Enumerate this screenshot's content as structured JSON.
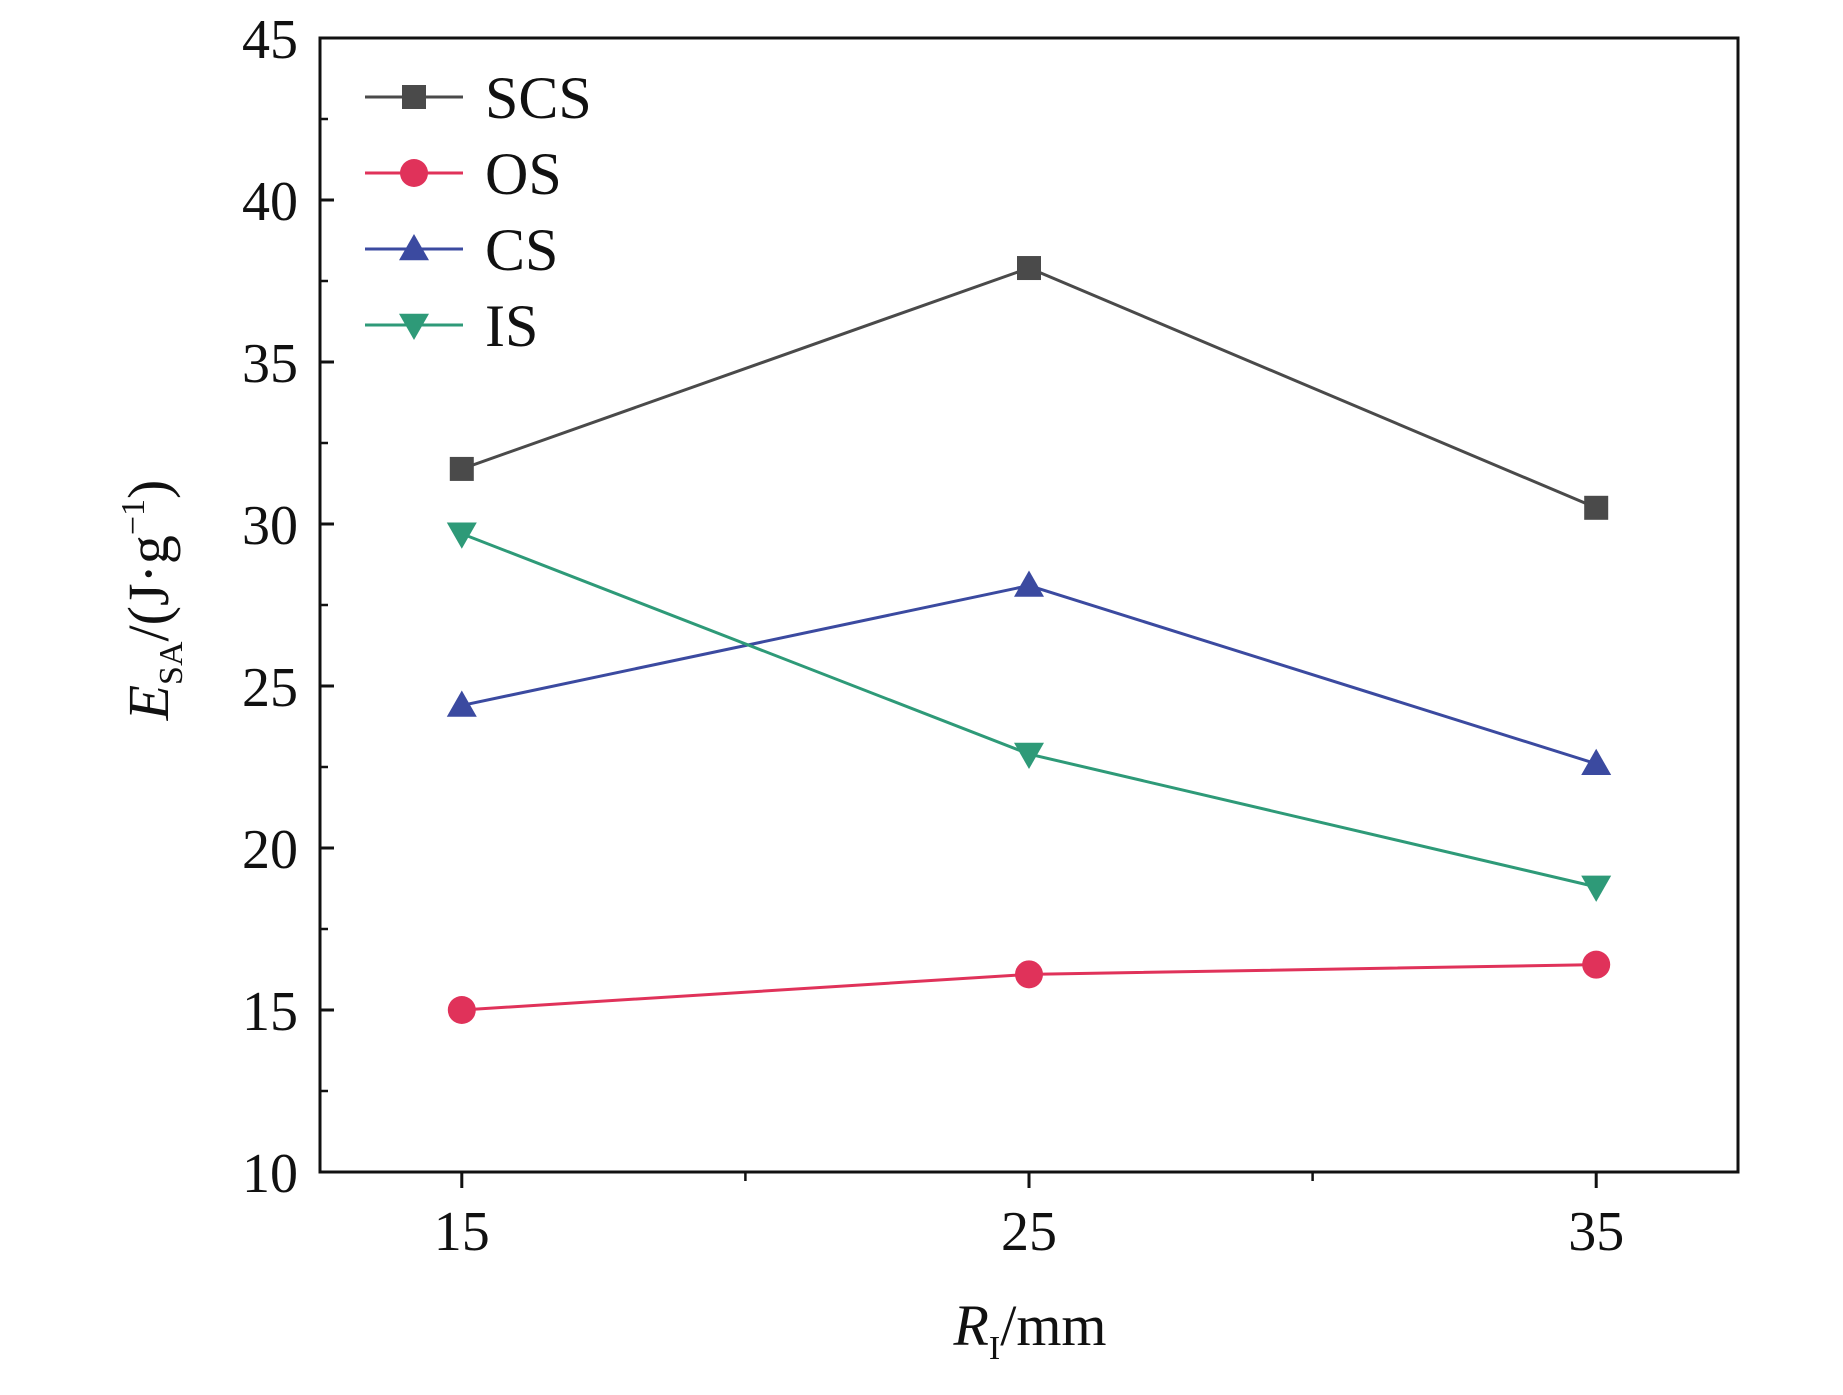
{
  "chart_data": {
    "type": "line",
    "title": "",
    "x": [
      15,
      25,
      35
    ],
    "xticks": [
      "15",
      "25",
      "35"
    ],
    "xlim": [
      12.5,
      37.5
    ],
    "yticks": [
      "10",
      "15",
      "20",
      "25",
      "30",
      "35",
      "40",
      "45"
    ],
    "ylim": [
      10,
      45
    ],
    "xlabel": {
      "main": "R",
      "sub": "I",
      "unit": "/mm"
    },
    "ylabel": {
      "main": "E",
      "sub": "SA",
      "unit": "/(J·g",
      "sup": "−1",
      "close": ")"
    },
    "grid": false,
    "legend_position": "top-left",
    "series": [
      {
        "name": "SCS",
        "color": "#4a4a4a",
        "marker": "square",
        "values": [
          31.7,
          37.9,
          30.5
        ]
      },
      {
        "name": "OS",
        "color": "#e0325a",
        "marker": "circle",
        "values": [
          15.0,
          16.1,
          16.4
        ]
      },
      {
        "name": "CS",
        "color": "#3b4aa0",
        "marker": "triangle-up",
        "values": [
          24.4,
          28.1,
          22.6
        ]
      },
      {
        "name": "IS",
        "color": "#2e9a78",
        "marker": "triangle-down",
        "values": [
          29.7,
          22.9,
          18.8
        ]
      }
    ]
  }
}
